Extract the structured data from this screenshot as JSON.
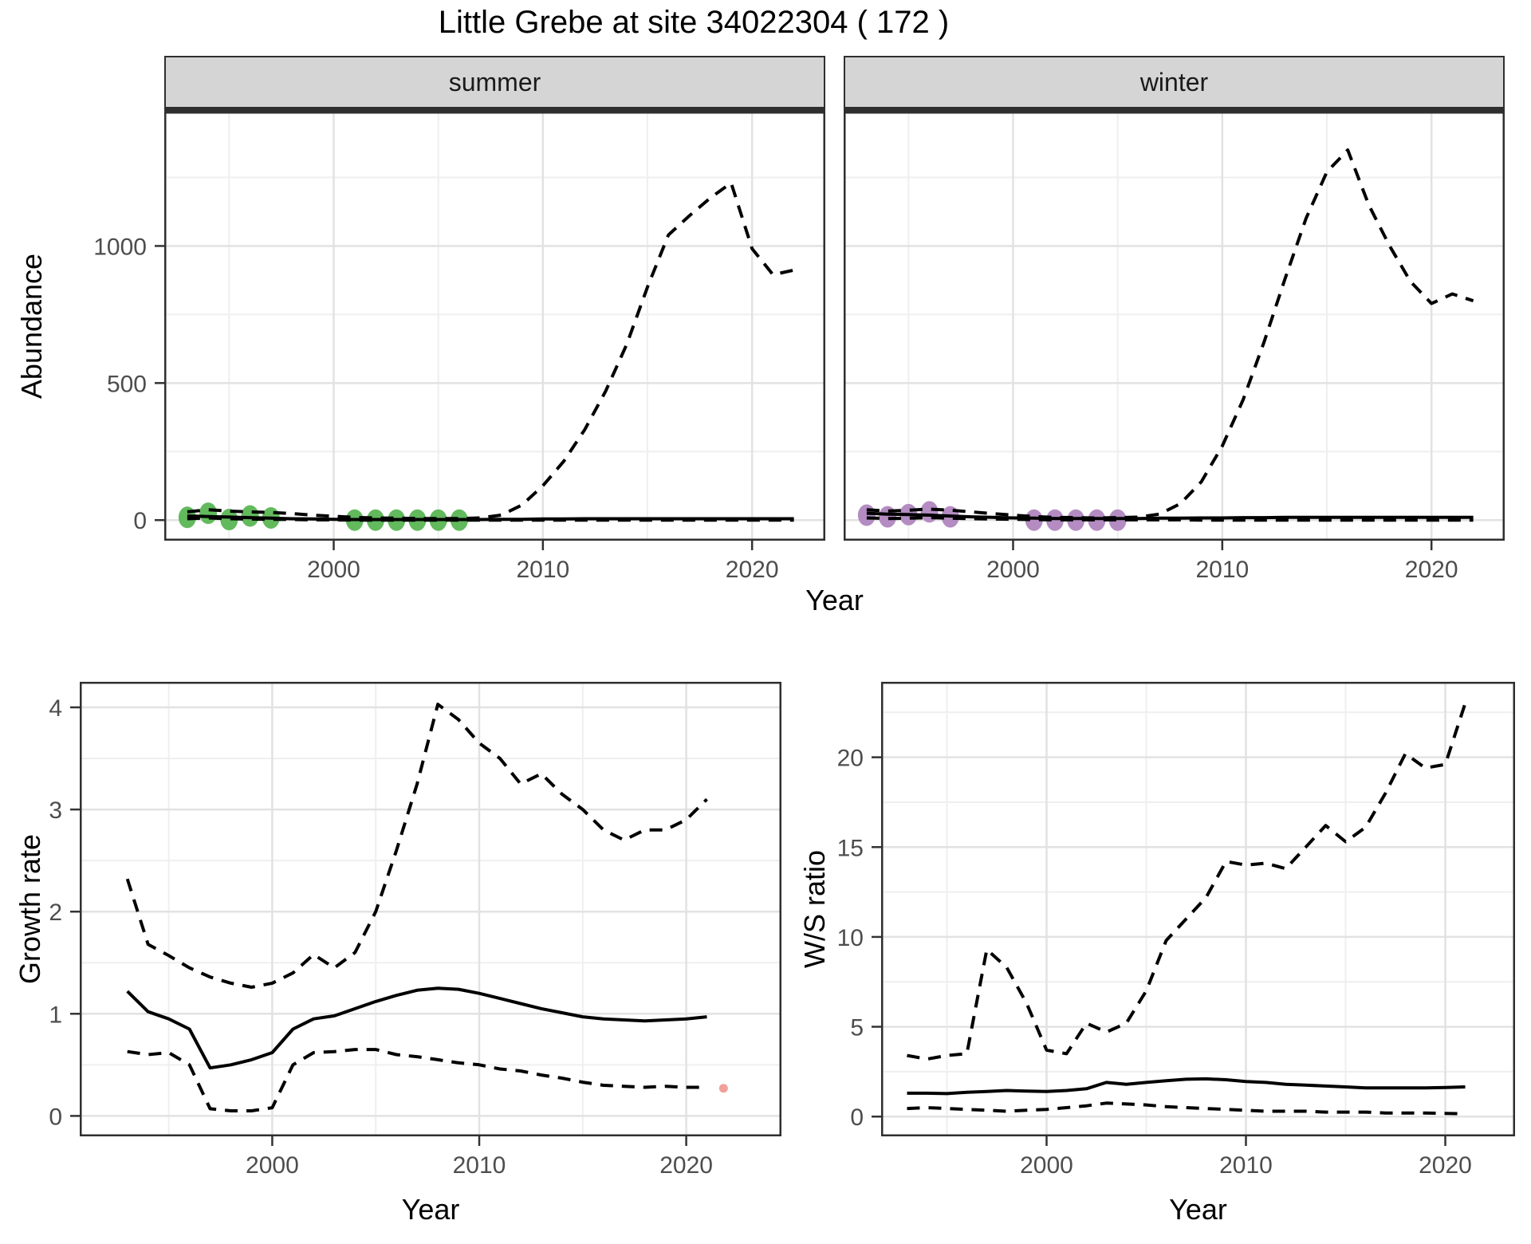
{
  "title": "Little Grebe at site 34022304 ( 172 )",
  "colors": {
    "summer_points": "#62ba5d",
    "winter_points": "#b48cc2",
    "line": "#000000",
    "strip_background": "#d5d5d5",
    "grid_major": "#e2e2e2",
    "grid_minor": "#efefef",
    "artifact_pink": "#f2a09a"
  },
  "chart_data": [
    {
      "id": "abundance_summer",
      "type": "line",
      "facet_label": "summer",
      "xlabel": "Year",
      "ylabel": "Abundance",
      "xlim": [
        1991.9,
        2023.5
      ],
      "ylim": [
        -75,
        1490
      ],
      "xticks": [
        2000,
        2010,
        2020
      ],
      "xticks_minor": [
        1995,
        2005,
        2015
      ],
      "yticks": [
        0,
        500,
        1000
      ],
      "yticks_minor": [
        250,
        750,
        1250
      ],
      "grid": true,
      "legend": "none",
      "x": [
        1993,
        1994,
        1995,
        1996,
        1997,
        1998,
        1999,
        2000,
        2001,
        2002,
        2003,
        2004,
        2005,
        2006,
        2007,
        2008,
        2009,
        2010,
        2011,
        2012,
        2013,
        2014,
        2015,
        2016,
        2017,
        2018,
        2019,
        2020,
        2021,
        2022
      ],
      "series": [
        {
          "name": "fit",
          "style": "solid",
          "values": [
            15,
            13,
            11,
            9,
            7,
            5,
            4,
            3,
            2,
            2,
            2,
            2,
            2,
            2,
            2,
            3,
            3,
            4,
            4,
            5,
            5,
            5,
            5,
            5,
            5,
            5,
            5,
            5,
            5,
            5
          ]
        },
        {
          "name": "upper_ci",
          "style": "dashed",
          "values": [
            30,
            38,
            33,
            30,
            28,
            24,
            18,
            14,
            10,
            8,
            7,
            6,
            6,
            6,
            8,
            18,
            55,
            125,
            215,
            330,
            470,
            640,
            850,
            1040,
            1110,
            1175,
            1230,
            990,
            895,
            912
          ]
        },
        {
          "name": "lower_ci",
          "style": "dashed",
          "values": [
            5,
            8,
            5,
            4,
            3,
            2,
            1,
            1,
            0,
            0,
            0,
            0,
            0,
            0,
            0,
            0,
            0,
            0,
            0,
            0,
            0,
            0,
            0,
            0,
            0,
            0,
            0,
            0,
            0,
            0
          ]
        }
      ],
      "points": {
        "name": "observed-summer",
        "color": "#62ba5d",
        "years": [
          1993,
          1994,
          1995,
          1996,
          1997,
          2001,
          2002,
          2003,
          2004,
          2005,
          2006
        ],
        "values": [
          10,
          25,
          2,
          15,
          8,
          0,
          0,
          0,
          0,
          0,
          0
        ]
      }
    },
    {
      "id": "abundance_winter",
      "type": "line",
      "facet_label": "winter",
      "xlabel": "Year",
      "ylabel": "Abundance",
      "xlim": [
        1991.9,
        2023.5
      ],
      "ylim": [
        -75,
        1490
      ],
      "xticks": [
        2000,
        2010,
        2020
      ],
      "xticks_minor": [
        1995,
        2005,
        2015
      ],
      "yticks": [
        0,
        500,
        1000
      ],
      "yticks_minor": [
        250,
        750,
        1250
      ],
      "grid": true,
      "legend": "none",
      "x": [
        1993,
        1994,
        1995,
        1996,
        1997,
        1998,
        1999,
        2000,
        2001,
        2002,
        2003,
        2004,
        2005,
        2006,
        2007,
        2008,
        2009,
        2010,
        2011,
        2012,
        2013,
        2014,
        2015,
        2016,
        2017,
        2018,
        2019,
        2020,
        2021,
        2022
      ],
      "series": [
        {
          "name": "fit",
          "style": "solid",
          "values": [
            25,
            22,
            20,
            18,
            15,
            12,
            10,
            8,
            7,
            6,
            6,
            6,
            6,
            6,
            7,
            7,
            8,
            8,
            9,
            9,
            10,
            10,
            10,
            10,
            10,
            10,
            10,
            10,
            10,
            10
          ]
        },
        {
          "name": "upper_ci",
          "style": "dashed",
          "values": [
            38,
            33,
            36,
            40,
            36,
            30,
            24,
            18,
            13,
            10,
            9,
            8,
            9,
            11,
            22,
            60,
            140,
            270,
            440,
            650,
            880,
            1100,
            1270,
            1350,
            1150,
            1000,
            870,
            790,
            825,
            800
          ]
        },
        {
          "name": "lower_ci",
          "style": "dashed",
          "values": [
            8,
            6,
            7,
            9,
            7,
            5,
            4,
            3,
            2,
            1,
            1,
            1,
            1,
            1,
            1,
            1,
            0,
            0,
            0,
            0,
            0,
            0,
            0,
            0,
            0,
            0,
            0,
            0,
            0,
            0
          ]
        }
      ],
      "points": {
        "name": "observed-winter",
        "color": "#b48cc2",
        "years": [
          1993,
          1994,
          1995,
          1996,
          1997,
          2001,
          2002,
          2003,
          2004,
          2005
        ],
        "values": [
          18,
          12,
          20,
          30,
          12,
          0,
          0,
          0,
          0,
          0
        ]
      }
    },
    {
      "id": "growth_rate",
      "type": "line",
      "facet_label": "",
      "xlabel": "Year",
      "ylabel": "Growth rate",
      "xlim": [
        1990.7,
        2024.6
      ],
      "ylim": [
        -0.2,
        4.25
      ],
      "xticks": [
        2000,
        2010,
        2020
      ],
      "xticks_minor": [
        1995,
        2005,
        2015
      ],
      "yticks": [
        0,
        1,
        2,
        3,
        4
      ],
      "yticks_minor": [
        0.5,
        1.5,
        2.5,
        3.5
      ],
      "grid": true,
      "legend": "none",
      "x": [
        1993,
        1994,
        1995,
        1996,
        1997,
        1998,
        1999,
        2000,
        2001,
        2002,
        2003,
        2004,
        2005,
        2006,
        2007,
        2008,
        2009,
        2010,
        2011,
        2012,
        2013,
        2014,
        2015,
        2016,
        2017,
        2018,
        2019,
        2020,
        2021
      ],
      "series": [
        {
          "name": "fit",
          "style": "solid",
          "values": [
            1.22,
            1.02,
            0.95,
            0.85,
            0.47,
            0.5,
            0.55,
            0.62,
            0.85,
            0.95,
            0.98,
            1.05,
            1.12,
            1.18,
            1.23,
            1.25,
            1.24,
            1.2,
            1.15,
            1.1,
            1.05,
            1.01,
            0.97,
            0.95,
            0.94,
            0.93,
            0.94,
            0.95,
            0.97
          ]
        },
        {
          "name": "upper_ci",
          "style": "dashed",
          "values": [
            2.32,
            1.68,
            1.57,
            1.45,
            1.36,
            1.3,
            1.26,
            1.3,
            1.4,
            1.58,
            1.45,
            1.6,
            2.0,
            2.6,
            3.25,
            4.03,
            3.88,
            3.65,
            3.5,
            3.25,
            3.35,
            3.15,
            3.0,
            2.8,
            2.7,
            2.8,
            2.8,
            2.9,
            3.1
          ]
        },
        {
          "name": "lower_ci",
          "style": "dashed",
          "values": [
            0.63,
            0.6,
            0.62,
            0.5,
            0.07,
            0.05,
            0.05,
            0.08,
            0.5,
            0.62,
            0.63,
            0.65,
            0.65,
            0.6,
            0.58,
            0.55,
            0.52,
            0.5,
            0.46,
            0.44,
            0.4,
            0.37,
            0.33,
            0.3,
            0.29,
            0.28,
            0.29,
            0.28,
            0.28
          ]
        }
      ],
      "extra_points": [
        {
          "year": 2021.8,
          "value": 0.27,
          "color": "#f2a09a"
        }
      ]
    },
    {
      "id": "ws_ratio",
      "type": "line",
      "facet_label": "",
      "xlabel": "Year",
      "ylabel": "W/S ratio",
      "xlim": [
        1991.7,
        2023.5
      ],
      "ylim": [
        -1.1,
        24.2
      ],
      "xticks": [
        2000,
        2010,
        2020
      ],
      "xticks_minor": [
        1995,
        2005,
        2015
      ],
      "yticks": [
        0,
        5,
        10,
        15,
        20
      ],
      "yticks_minor": [
        2.5,
        7.5,
        12.5,
        17.5,
        22.5
      ],
      "grid": true,
      "legend": "none",
      "x": [
        1993,
        1994,
        1995,
        1996,
        1997,
        1998,
        1999,
        2000,
        2001,
        2002,
        2003,
        2004,
        2005,
        2006,
        2007,
        2008,
        2009,
        2010,
        2011,
        2012,
        2013,
        2014,
        2015,
        2016,
        2017,
        2018,
        2019,
        2020,
        2021
      ],
      "series": [
        {
          "name": "fit",
          "style": "solid",
          "values": [
            1.3,
            1.3,
            1.28,
            1.35,
            1.4,
            1.45,
            1.42,
            1.4,
            1.45,
            1.55,
            1.9,
            1.8,
            1.9,
            2.0,
            2.08,
            2.1,
            2.05,
            1.95,
            1.9,
            1.8,
            1.75,
            1.7,
            1.65,
            1.6,
            1.6,
            1.6,
            1.6,
            1.62,
            1.65
          ]
        },
        {
          "name": "upper_ci",
          "style": "dashed",
          "values": [
            3.4,
            3.2,
            3.4,
            3.5,
            9.3,
            8.3,
            6.3,
            3.7,
            3.5,
            5.2,
            4.7,
            5.2,
            7.0,
            9.8,
            11.0,
            12.2,
            14.2,
            14.0,
            14.1,
            13.8,
            15.0,
            16.2,
            15.3,
            16.1,
            18.0,
            20.2,
            19.4,
            19.6,
            23.0
          ]
        },
        {
          "name": "lower_ci",
          "style": "dashed",
          "values": [
            0.45,
            0.5,
            0.45,
            0.4,
            0.35,
            0.3,
            0.35,
            0.4,
            0.5,
            0.6,
            0.75,
            0.7,
            0.65,
            0.55,
            0.5,
            0.45,
            0.4,
            0.35,
            0.3,
            0.3,
            0.3,
            0.25,
            0.25,
            0.25,
            0.2,
            0.2,
            0.2,
            0.18,
            0.15
          ]
        }
      ]
    }
  ]
}
